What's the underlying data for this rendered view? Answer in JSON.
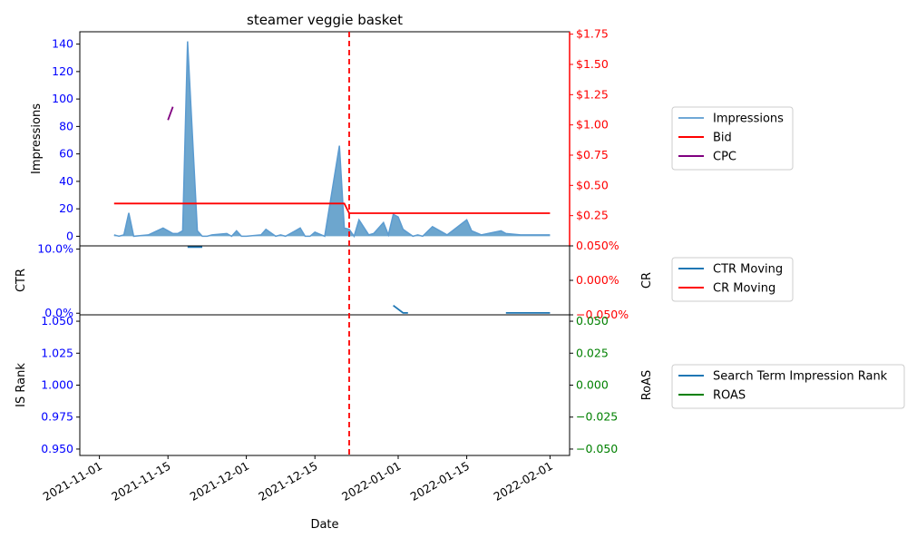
{
  "chart_data": {
    "type": "line",
    "title": "steamer veggie basket",
    "xlabel": "Date",
    "x_tick_labels": [
      "2021-11-01",
      "2021-11-15",
      "2021-12-01",
      "2021-12-15",
      "2022-01-01",
      "2022-01-15",
      "2022-02-01"
    ],
    "event_marker_date": "2021-12-22",
    "colors": {
      "impressions": "#1f77b4",
      "bid": "#ff0000",
      "cpc": "#800080",
      "ctr": "#1f77b4",
      "roas": "#008000",
      "left_tick": "#0000ff",
      "right_tick_cr": "#ff0000",
      "right_tick_roas": "#008000"
    },
    "panels": [
      {
        "id": "top",
        "ylabel": "Impressions",
        "ylim": [
          -7,
          149
        ],
        "y_ticks": [
          0,
          20,
          40,
          60,
          80,
          100,
          120,
          140
        ],
        "y_tick_labels": [
          "0",
          "20",
          "40",
          "60",
          "80",
          "100",
          "120",
          "140"
        ],
        "right_ylabel": "",
        "right_ylim": [
          0.0,
          1.77
        ],
        "right_ticks": [
          0.25,
          0.5,
          0.75,
          1.0,
          1.25,
          1.5,
          1.75
        ],
        "right_tick_labels": [
          "$0.25",
          "$0.50",
          "$0.75",
          "$1.00",
          "$1.25",
          "$1.50",
          "$1.75"
        ],
        "series": [
          {
            "name": "Impressions",
            "kind": "area",
            "x": [
              "2021-11-04",
              "2021-11-05",
              "2021-11-06",
              "2021-11-07",
              "2021-11-08",
              "2021-11-11",
              "2021-11-14",
              "2021-11-16",
              "2021-11-17",
              "2021-11-18",
              "2021-11-19",
              "2021-11-21",
              "2021-11-22",
              "2021-11-23",
              "2021-11-24",
              "2021-11-27",
              "2021-11-28",
              "2021-11-29",
              "2021-11-30",
              "2021-12-01",
              "2021-12-04",
              "2021-12-05",
              "2021-12-07",
              "2021-12-08",
              "2021-12-09",
              "2021-12-11",
              "2021-12-12",
              "2021-12-13",
              "2021-12-14",
              "2021-12-15",
              "2021-12-17",
              "2021-12-20",
              "2021-12-21",
              "2021-12-22",
              "2021-12-23",
              "2021-12-24",
              "2021-12-26",
              "2021-12-27",
              "2021-12-29",
              "2021-12-30",
              "2021-12-31",
              "2022-01-01",
              "2022-01-02",
              "2022-01-04",
              "2022-01-05",
              "2022-01-06",
              "2022-01-08",
              "2022-01-11",
              "2022-01-15",
              "2022-01-16",
              "2022-01-18",
              "2022-01-22",
              "2022-01-23",
              "2022-01-26",
              "2022-02-01"
            ],
            "y": [
              1,
              0,
              1,
              17,
              0,
              1,
              6,
              2,
              2,
              4,
              142,
              4,
              0,
              0,
              1,
              2,
              0,
              4,
              0,
              0,
              1,
              5,
              0,
              1,
              0,
              4,
              6,
              0,
              0,
              3,
              0,
              66,
              6,
              5,
              0,
              12,
              1,
              2,
              10,
              1,
              16,
              14,
              5,
              0,
              1,
              0,
              7,
              1,
              12,
              4,
              1,
              4,
              2,
              1,
              1
            ]
          },
          {
            "name": "Bid",
            "kind": "line",
            "axis": "right",
            "x": [
              "2021-11-04",
              "2021-12-21",
              "2021-12-22",
              "2022-02-01"
            ],
            "y": [
              0.35,
              0.35,
              0.27,
              0.27
            ]
          },
          {
            "name": "CPC",
            "kind": "line",
            "axis": "right",
            "x": [
              "2021-11-15",
              "2021-11-16"
            ],
            "y": [
              1.04,
              1.15
            ]
          }
        ]
      },
      {
        "id": "middle",
        "ylabel": "CTR",
        "ylim": [
          -0.25,
          10.5
        ],
        "y_ticks": [
          0,
          10
        ],
        "y_tick_labels": [
          "0.0%",
          "10.0%"
        ],
        "right_ylabel": "CR",
        "right_ylim": [
          -0.05,
          0.05
        ],
        "right_ticks": [
          -0.05,
          0.0,
          0.05
        ],
        "right_tick_labels": [
          "−0.050%",
          "0.000%",
          "0.050%"
        ],
        "series": [
          {
            "name": "CTR Moving",
            "kind": "line",
            "segments": [
              {
                "x": [
                  "2021-11-19",
                  "2021-11-22"
                ],
                "y": [
                  10.3,
                  10.3
                ]
              },
              {
                "x": [
                  "2021-12-31",
                  "2022-01-02",
                  "2022-01-03"
                ],
                "y": [
                  1.2,
                  0.05,
                  0.05
                ]
              },
              {
                "x": [
                  "2022-01-23",
                  "2022-02-01"
                ],
                "y": [
                  0.05,
                  0.05
                ]
              }
            ]
          },
          {
            "name": "CR Moving",
            "kind": "line",
            "axis": "right",
            "segments": []
          }
        ]
      },
      {
        "id": "bottom",
        "ylabel": "IS Rank",
        "ylim": [
          0.945,
          1.055
        ],
        "y_ticks": [
          0.95,
          0.975,
          1.0,
          1.025,
          1.05
        ],
        "y_tick_labels": [
          "0.950",
          "0.975",
          "1.000",
          "1.025",
          "1.050"
        ],
        "right_ylabel": "RoAS",
        "right_ylim": [
          -0.055,
          0.055
        ],
        "right_ticks": [
          -0.05,
          -0.025,
          0.0,
          0.025,
          0.05
        ],
        "right_tick_labels": [
          "−0.050",
          "−0.025",
          "0.000",
          "0.025",
          "0.050"
        ],
        "series": [
          {
            "name": "Search Term Impression Rank",
            "kind": "line",
            "segments": []
          },
          {
            "name": "ROAS",
            "kind": "line",
            "axis": "right",
            "segments": []
          }
        ]
      }
    ],
    "legends": [
      {
        "panel": "top",
        "entries": [
          {
            "label": "Impressions",
            "color": "#6fa8d6"
          },
          {
            "label": "Bid",
            "color": "#ff0000"
          },
          {
            "label": "CPC",
            "color": "#800080"
          }
        ]
      },
      {
        "panel": "middle",
        "entries": [
          {
            "label": "CTR Moving",
            "color": "#1f77b4"
          },
          {
            "label": "CR Moving",
            "color": "#ff0000"
          }
        ]
      },
      {
        "panel": "bottom",
        "entries": [
          {
            "label": "Search Term Impression Rank",
            "color": "#1f77b4"
          },
          {
            "label": "ROAS",
            "color": "#008000"
          }
        ]
      }
    ]
  }
}
